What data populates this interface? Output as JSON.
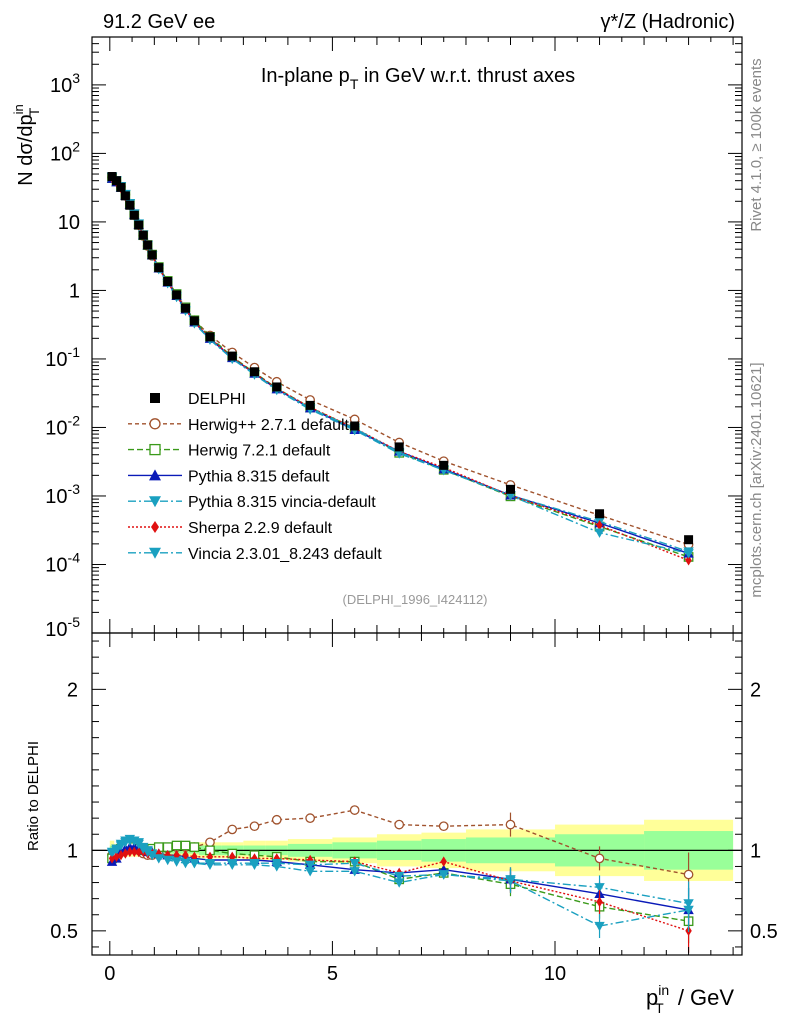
{
  "header": {
    "left": "91.2 GeV ee",
    "right": "γ*/Z (Hadronic)"
  },
  "side_labels": {
    "rivet": "Rivet 4.1.0, ≥ 100k events",
    "mcplots": "mcplots.cern.ch [arXiv:2401.10621]"
  },
  "colors": {
    "data": "#000000",
    "herwigpp": "#a0522d",
    "herwig7": "#3a9a1a",
    "pythia": "#0a1ab8",
    "pythia_vincia": "#1aa0c0",
    "sherpa": "#e01010",
    "vincia": "#1aa0c0",
    "band_inner": "#99ff99",
    "band_outer": "#ffff99"
  },
  "chart_data": [
    {
      "type": "scatter",
      "name": "main",
      "title": "In-plane p_T in GeV w.r.t. thrust axes",
      "ylabel": "N  dσ/dp_T^in",
      "xlabel": "p_T^in / GeV",
      "yscale": "log",
      "xlim": [
        -0.4,
        14.2
      ],
      "ylim": [
        1e-05,
        5000
      ],
      "y_ticks": [
        {
          "value": 0.0001,
          "label": "10^{-4}"
        },
        {
          "value": 0.001,
          "label": "10^{-3}"
        },
        {
          "value": 0.01,
          "label": "10^{-2}"
        },
        {
          "value": 0.1,
          "label": "10^{-1}"
        },
        {
          "value": 1,
          "label": "1"
        },
        {
          "value": 10,
          "label": "10"
        },
        {
          "value": 100,
          "label": "10^{2}"
        },
        {
          "value": 1000,
          "label": "10^{3}"
        }
      ],
      "y_tick_cut": {
        "value": 1e-05,
        "label": "10^{-5}"
      },
      "watermark": "(DELPHI_1996_I424112)",
      "x": [
        0.05,
        0.15,
        0.25,
        0.35,
        0.45,
        0.55,
        0.65,
        0.75,
        0.85,
        0.95,
        1.1,
        1.3,
        1.5,
        1.7,
        1.9,
        2.25,
        2.75,
        3.25,
        3.75,
        4.5,
        5.5,
        6.5,
        7.5,
        9.0,
        11.0,
        13.0
      ],
      "data": {
        "name": "DELPHI",
        "values": [
          46,
          40,
          32,
          24,
          17.5,
          12.5,
          9.0,
          6.4,
          4.6,
          3.3,
          2.15,
          1.35,
          0.86,
          0.55,
          0.36,
          0.21,
          0.11,
          0.065,
          0.039,
          0.021,
          0.0105,
          0.0052,
          0.0028,
          0.00125,
          0.00055,
          0.00023
        ]
      },
      "series": [
        {
          "name": "Herwig++ 2.7.1 default",
          "key": "herwigpp",
          "marker": "circle-open",
          "dash": "4,3"
        },
        {
          "name": "Herwig 7.2.1 default",
          "key": "herwig7",
          "marker": "square-open",
          "dash": "6,3"
        },
        {
          "name": "Pythia 8.315 default",
          "key": "pythia",
          "marker": "triangle-up",
          "dash": ""
        },
        {
          "name": "Pythia 8.315 vincia-default",
          "key": "pythia_vincia",
          "marker": "triangle-down",
          "dash": "8,3,2,3"
        },
        {
          "name": "Sherpa 2.2.9 default",
          "key": "sherpa",
          "marker": "diamond",
          "dash": "2,2"
        },
        {
          "name": "Vincia 2.3.01_8.243 default",
          "key": "vincia",
          "marker": "triangle-down",
          "dash": "8,3,2,3"
        }
      ]
    },
    {
      "type": "line",
      "name": "ratio",
      "ylabel": "Ratio to DELPHI",
      "xlabel": "p_T^in / GeV",
      "xlim": [
        -0.4,
        14.2
      ],
      "ylim": [
        0.35,
        2.35
      ],
      "y_ticks": [
        0.5,
        1,
        2
      ],
      "x_ticks": [
        0,
        5,
        10
      ],
      "x": [
        0.05,
        0.15,
        0.25,
        0.35,
        0.45,
        0.55,
        0.65,
        0.75,
        0.85,
        0.95,
        1.1,
        1.3,
        1.5,
        1.7,
        1.9,
        2.25,
        2.75,
        3.25,
        3.75,
        4.5,
        5.5,
        6.5,
        7.5,
        9.0,
        11.0,
        13.0
      ],
      "bands": {
        "edges": [
          0,
          0.1,
          0.2,
          0.3,
          0.4,
          0.5,
          0.6,
          0.7,
          0.8,
          0.9,
          1.0,
          1.2,
          1.4,
          1.6,
          1.8,
          2.0,
          2.5,
          3.0,
          3.5,
          4.0,
          5.0,
          6.0,
          7.0,
          8.0,
          10.0,
          12.0,
          14.0
        ],
        "inner": [
          0.03,
          0.02,
          0.02,
          0.02,
          0.02,
          0.02,
          0.02,
          0.02,
          0.02,
          0.02,
          0.02,
          0.02,
          0.02,
          0.02,
          0.02,
          0.03,
          0.03,
          0.03,
          0.03,
          0.04,
          0.05,
          0.06,
          0.07,
          0.08,
          0.1,
          0.12
        ],
        "outer": [
          0.06,
          0.04,
          0.04,
          0.04,
          0.04,
          0.04,
          0.04,
          0.04,
          0.04,
          0.04,
          0.04,
          0.04,
          0.04,
          0.04,
          0.05,
          0.05,
          0.05,
          0.06,
          0.06,
          0.07,
          0.08,
          0.1,
          0.11,
          0.13,
          0.16,
          0.19
        ]
      },
      "series": [
        {
          "key": "herwigpp",
          "values": [
            0.97,
            0.99,
            1.02,
            1.04,
            1.05,
            1.03,
            1.0,
            0.98,
            0.97,
            0.97,
            0.98,
            1.01,
            1.02,
            1.02,
            1.02,
            1.05,
            1.13,
            1.15,
            1.19,
            1.2,
            1.25,
            1.16,
            1.15,
            1.16,
            0.95,
            0.85
          ]
        },
        {
          "key": "herwig7",
          "values": [
            0.95,
            0.98,
            1.01,
            1.03,
            1.03,
            1.02,
            1.01,
            1.0,
            1.0,
            1.01,
            1.02,
            1.02,
            1.03,
            1.03,
            1.02,
            1.0,
            0.98,
            0.97,
            0.96,
            0.93,
            0.93,
            0.82,
            0.86,
            0.79,
            0.65,
            0.56
          ]
        },
        {
          "key": "pythia",
          "values": [
            0.93,
            0.95,
            0.99,
            1.01,
            1.02,
            1.02,
            1.01,
            1.0,
            0.99,
            0.99,
            0.98,
            0.97,
            0.97,
            0.96,
            0.95,
            0.94,
            0.94,
            0.94,
            0.93,
            0.91,
            0.88,
            0.86,
            0.88,
            0.82,
            0.73,
            0.63
          ]
        },
        {
          "key": "pythia_vincia",
          "values": [
            0.98,
            1.0,
            1.03,
            1.05,
            1.06,
            1.06,
            1.05,
            1.02,
            1.0,
            0.98,
            0.96,
            0.95,
            0.94,
            0.93,
            0.92,
            0.91,
            0.91,
            0.91,
            0.9,
            0.87,
            0.87,
            0.8,
            0.85,
            0.82,
            0.77,
            0.67
          ]
        },
        {
          "key": "sherpa",
          "values": [
            0.95,
            0.96,
            0.97,
            0.98,
            0.99,
            0.99,
            0.99,
            0.99,
            0.98,
            0.98,
            0.98,
            0.97,
            0.97,
            0.97,
            0.96,
            0.96,
            0.96,
            0.95,
            0.95,
            0.94,
            0.93,
            0.86,
            0.93,
            0.81,
            0.68,
            0.5
          ]
        },
        {
          "key": "vincia",
          "values": [
            0.99,
            1.01,
            1.04,
            1.06,
            1.07,
            1.06,
            1.04,
            1.01,
            0.99,
            0.97,
            0.95,
            0.94,
            0.93,
            0.92,
            0.92,
            0.92,
            0.92,
            0.92,
            0.92,
            0.91,
            0.92,
            0.84,
            0.85,
            0.81,
            0.53,
            0.63
          ]
        }
      ]
    }
  ]
}
